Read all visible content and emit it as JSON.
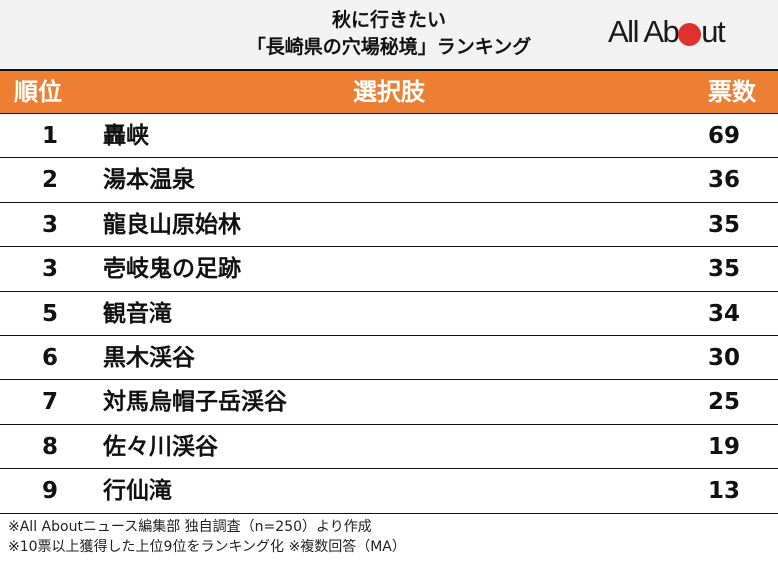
{
  "title": {
    "line1": "秋に行きたい",
    "line2": "「長崎県の穴場秘境」ランキング"
  },
  "logo": {
    "pre": "All Ab",
    "post": "ut",
    "dot_color": "#e03131"
  },
  "header": {
    "rank": "順位",
    "choice": "選択肢",
    "votes": "票数",
    "color": "#ec7f32"
  },
  "rows": [
    {
      "rank": "1",
      "name": "轟峡",
      "votes": "69"
    },
    {
      "rank": "2",
      "name": "湯本温泉",
      "votes": "36"
    },
    {
      "rank": "3",
      "name": "龍良山原始林",
      "votes": "35"
    },
    {
      "rank": "3",
      "name": "壱岐鬼の足跡",
      "votes": "35"
    },
    {
      "rank": "5",
      "name": "観音滝",
      "votes": "34"
    },
    {
      "rank": "6",
      "name": "黒木渓谷",
      "votes": "30"
    },
    {
      "rank": "7",
      "name": "対馬烏帽子岳渓谷",
      "votes": "25"
    },
    {
      "rank": "8",
      "name": "佐々川渓谷",
      "votes": "19"
    },
    {
      "rank": "9",
      "name": "行仙滝",
      "votes": "13"
    }
  ],
  "footer": {
    "line1": "※All Aboutニュース編集部 独自調査（n=250）より作成",
    "line2": "※10票以上獲得した上位9位をランキング化 ※複数回答（MA）"
  },
  "chart_data": {
    "type": "table",
    "title": "秋に行きたい「長崎県の穴場秘境」ランキング",
    "columns": [
      "順位",
      "選択肢",
      "票数"
    ],
    "categories": [
      "轟峡",
      "湯本温泉",
      "龍良山原始林",
      "壱岐鬼の足跡",
      "観音滝",
      "黒木渓谷",
      "対馬烏帽子岳渓谷",
      "佐々川渓谷",
      "行仙滝"
    ],
    "ranks": [
      1,
      2,
      3,
      3,
      5,
      6,
      7,
      8,
      9
    ],
    "values": [
      69,
      36,
      35,
      35,
      34,
      30,
      25,
      19,
      13
    ],
    "notes": [
      "※All Aboutニュース編集部 独自調査（n=250）より作成",
      "※10票以上獲得した上位9位をランキング化 ※複数回答（MA）"
    ]
  }
}
